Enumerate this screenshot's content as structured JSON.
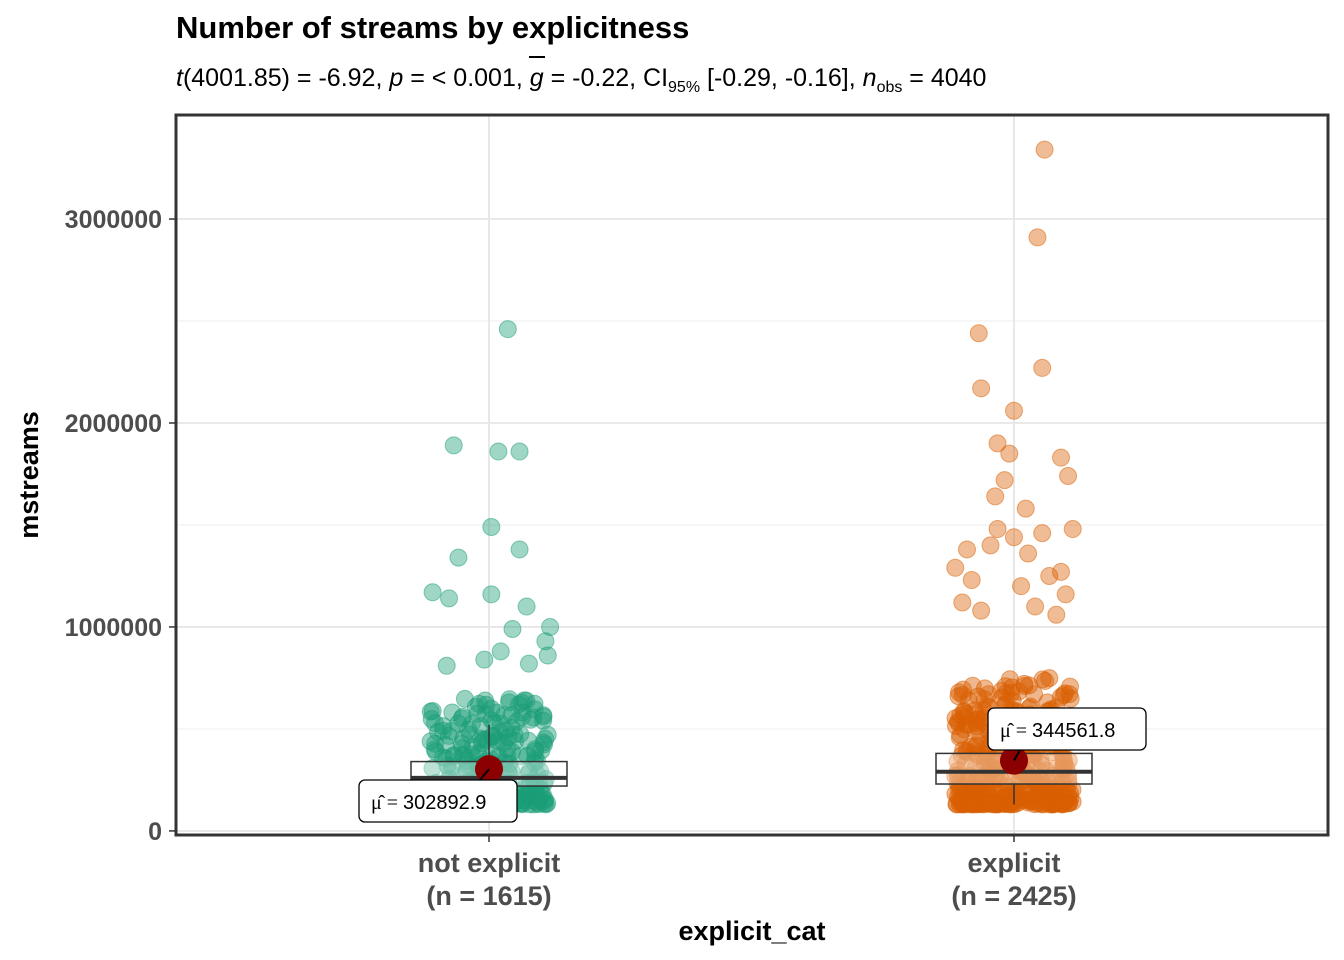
{
  "chart_data": {
    "type": "scatter",
    "title": "Number of streams by explicitness",
    "subtitle": {
      "t_label": "t",
      "df": "(4001.85) = -6.92, ",
      "p_label": "p",
      "p_text": " = < 0.001, ",
      "g_label": "g",
      "g_text": " = -0.22, CI",
      "ci_sub": "95%",
      "ci_text": " [-0.29, -0.16], ",
      "n_label": "n",
      "n_sub": "obs",
      "n_text": " = 4040"
    },
    "xlabel": "explicit_cat",
    "ylabel": "mstreams",
    "ylim": [
      0,
      3400000
    ],
    "yticks": [
      0,
      1000000,
      2000000,
      3000000
    ],
    "ytick_labels": [
      "0",
      "1000000",
      "2000000",
      "3000000"
    ],
    "categories": [
      "not explicit",
      "explicit"
    ],
    "category_counts": [
      "(n = 1615)",
      "(n = 2425)"
    ],
    "colors": {
      "not explicit": "#1b9e77",
      "explicit": "#d95f02",
      "mean": "#8b0000"
    },
    "grid": true,
    "series": [
      {
        "name": "not explicit",
        "n": 1615,
        "mean": 302892.9,
        "mean_label": "302892.9",
        "box": {
          "q1": 220000,
          "median": 260000,
          "q3": 340000,
          "whisker_low": 150000,
          "whisker_high": 520000
        },
        "outliers": [
          [
            0.08,
            2460000
          ],
          [
            -0.15,
            1890000
          ],
          [
            0.04,
            1860000
          ],
          [
            0.13,
            1860000
          ],
          [
            0.01,
            1490000
          ],
          [
            0.13,
            1380000
          ],
          [
            -0.13,
            1340000
          ],
          [
            -0.24,
            1170000
          ],
          [
            0.01,
            1160000
          ],
          [
            -0.17,
            1140000
          ],
          [
            0.16,
            1100000
          ],
          [
            0.26,
            1000000
          ],
          [
            0.1,
            990000
          ],
          [
            0.24,
            930000
          ],
          [
            0.05,
            880000
          ],
          [
            0.25,
            860000
          ],
          [
            -0.02,
            840000
          ],
          [
            0.17,
            820000
          ],
          [
            -0.18,
            810000
          ]
        ]
      },
      {
        "name": "explicit",
        "n": 2425,
        "mean": 344561.8,
        "mean_label": "344561.8",
        "box": {
          "q1": 230000,
          "median": 290000,
          "q3": 380000,
          "whisker_low": 130000,
          "whisker_high": 580000
        },
        "outliers": [
          [
            0.13,
            3340000
          ],
          [
            0.1,
            2910000
          ],
          [
            -0.15,
            2440000
          ],
          [
            0.12,
            2270000
          ],
          [
            -0.14,
            2170000
          ],
          [
            0.0,
            2060000
          ],
          [
            -0.07,
            1900000
          ],
          [
            0.2,
            1830000
          ],
          [
            -0.02,
            1850000
          ],
          [
            0.23,
            1740000
          ],
          [
            -0.04,
            1720000
          ],
          [
            -0.08,
            1640000
          ],
          [
            0.05,
            1580000
          ],
          [
            0.25,
            1480000
          ],
          [
            -0.07,
            1480000
          ],
          [
            0.12,
            1460000
          ],
          [
            0.0,
            1440000
          ],
          [
            -0.2,
            1380000
          ],
          [
            -0.1,
            1400000
          ],
          [
            0.06,
            1360000
          ],
          [
            -0.25,
            1290000
          ],
          [
            0.2,
            1270000
          ],
          [
            0.15,
            1250000
          ],
          [
            -0.18,
            1230000
          ],
          [
            0.03,
            1200000
          ],
          [
            0.22,
            1160000
          ],
          [
            -0.22,
            1120000
          ],
          [
            0.09,
            1100000
          ],
          [
            -0.14,
            1080000
          ],
          [
            0.18,
            1060000
          ]
        ]
      }
    ]
  }
}
